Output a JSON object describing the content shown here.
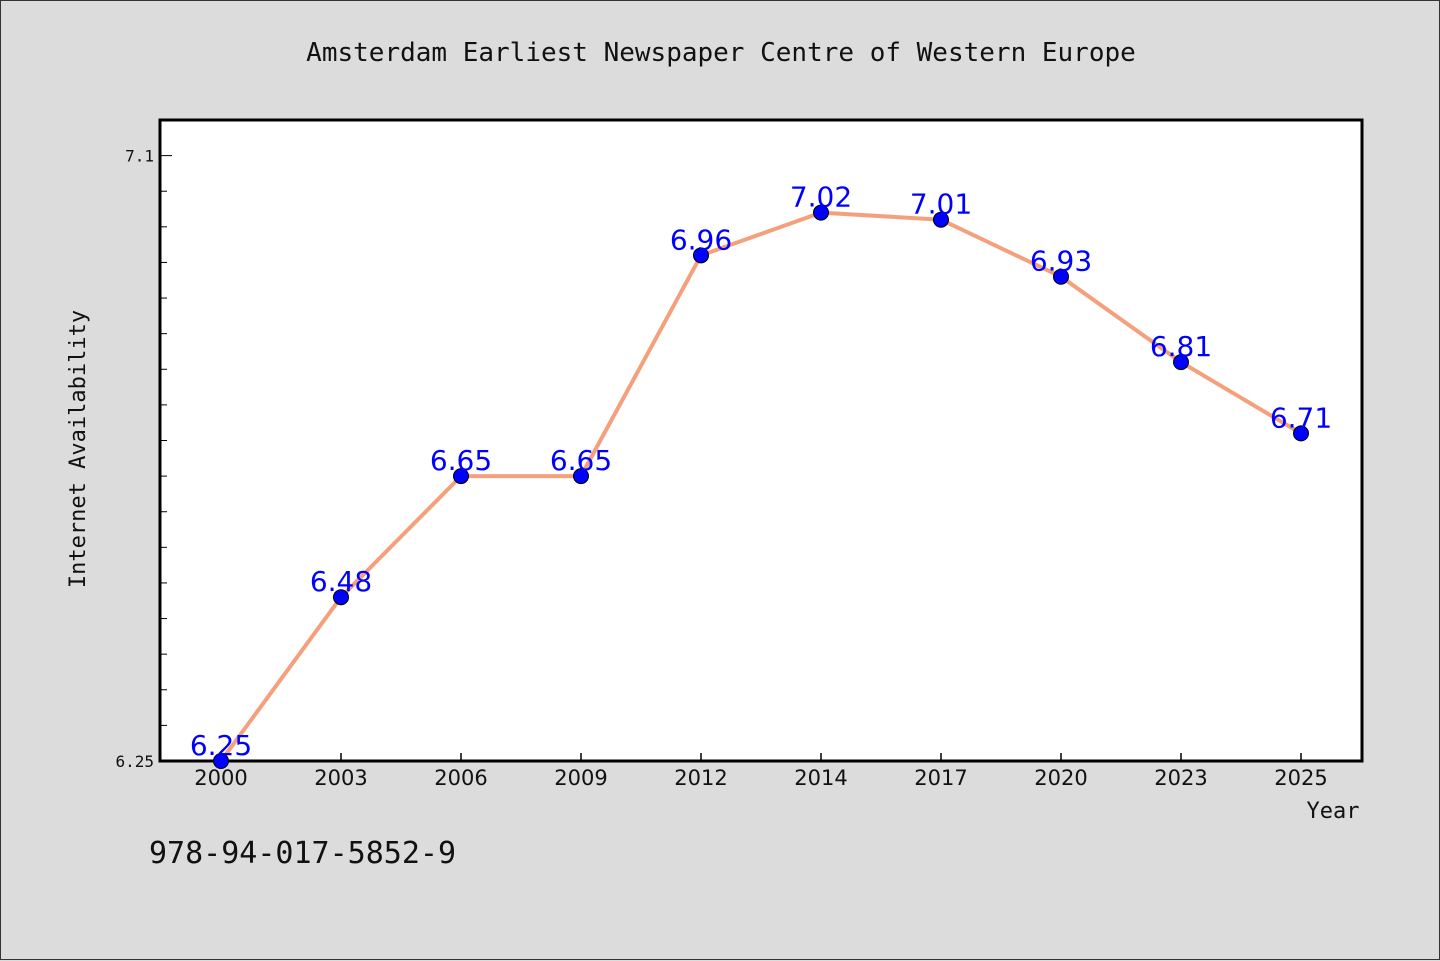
{
  "chart_data": {
    "type": "line",
    "title": "Amsterdam Earliest Newspaper Centre of Western Europe",
    "xlabel": "Year",
    "ylabel": "Internet Availability",
    "categories": [
      "2000",
      "2003",
      "2006",
      "2009",
      "2012",
      "2014",
      "2017",
      "2020",
      "2023",
      "2025"
    ],
    "series": [
      {
        "values": [
          6.25,
          6.48,
          6.65,
          6.65,
          6.96,
          7.02,
          7.01,
          6.93,
          6.81,
          6.71
        ]
      }
    ],
    "data_labels": [
      "6.25",
      "6.48",
      "6.65",
      "6.65",
      "6.96",
      "7.02",
      "7.01",
      "6.93",
      "6.81",
      "6.71"
    ],
    "y_tick_labels": [
      "6.25",
      "7.1"
    ],
    "y_ticks": [
      6.25,
      7.1
    ],
    "ylim": [
      6.25,
      7.15
    ],
    "grid": false,
    "line_color": "#f4a07c",
    "marker_color": "#0000ff",
    "label_color": "#0000ff",
    "background_color": "#dcdcdc",
    "plot_background": "#ffffff"
  },
  "footer": {
    "isbn": "978-94-017-5852-9"
  }
}
